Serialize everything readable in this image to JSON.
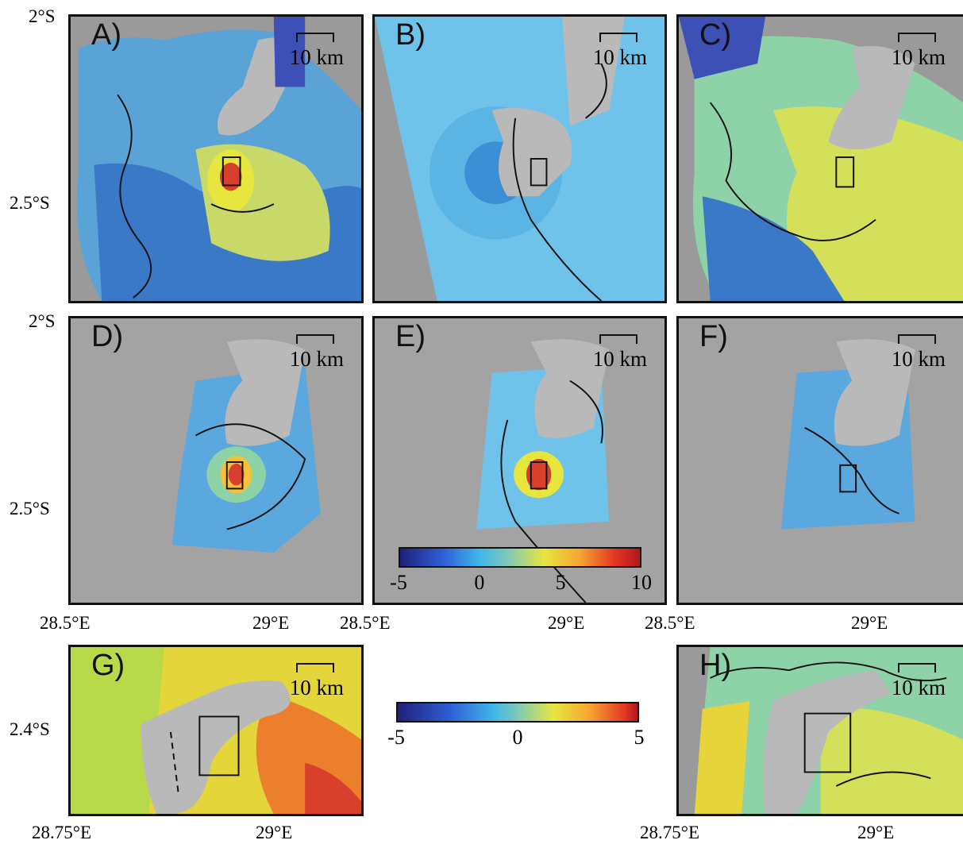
{
  "panels": [
    {
      "id": "A",
      "label": "A)",
      "scale_label": "10 km"
    },
    {
      "id": "B",
      "label": "B)",
      "scale_label": "10 km"
    },
    {
      "id": "C",
      "label": "C)",
      "scale_label": "10 km"
    },
    {
      "id": "D",
      "label": "D)",
      "scale_label": "10 km"
    },
    {
      "id": "E",
      "label": "E)",
      "scale_label": "10 km"
    },
    {
      "id": "F",
      "label": "F)",
      "scale_label": "10 km"
    },
    {
      "id": "G",
      "label": "G)",
      "scale_label": "10 km"
    },
    {
      "id": "H",
      "label": "H)",
      "scale_label": "10 km"
    }
  ],
  "axes": {
    "lat_top_row": [
      "2°S",
      "2.5°S"
    ],
    "lat_mid_row": [
      "2°S",
      "2.5°S"
    ],
    "lon_mid_row": [
      "28.5°E",
      "29°E",
      "28.5°E",
      "29°E",
      "28.5°E",
      "29°E"
    ],
    "lat_bottom_row": [
      "2.4°S"
    ],
    "lon_bottom_row": [
      "28.75°E",
      "29°E",
      "28.75°E",
      "29°E"
    ]
  },
  "colorbars": [
    {
      "ticks": [
        "-5",
        "0",
        "5",
        "10"
      ],
      "range": [
        -5,
        10
      ]
    },
    {
      "ticks": [
        "-5",
        "0",
        "5"
      ],
      "range": [
        -5,
        5
      ]
    }
  ],
  "colors": {
    "land": "#b9b9b9",
    "frame": "#111111"
  }
}
